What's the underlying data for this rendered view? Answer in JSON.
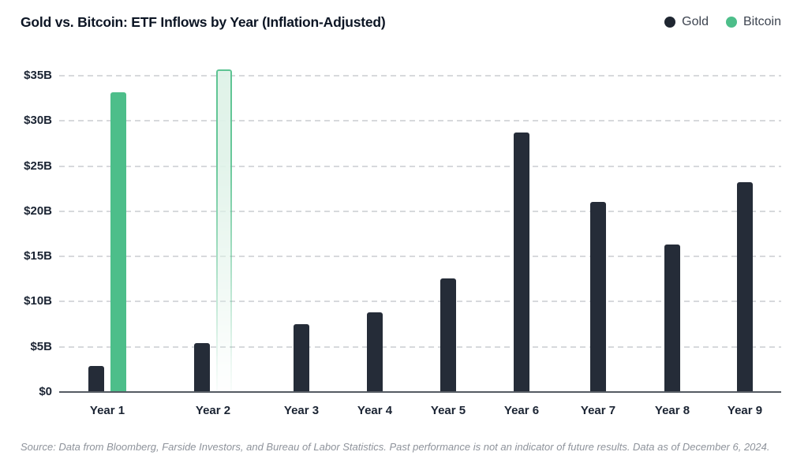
{
  "header": {
    "title": "Gold vs. Bitcoin: ETF Inflows by Year (Inflation-Adjusted)"
  },
  "legend": {
    "items": [
      {
        "label": "Gold",
        "color": "#1F2631"
      },
      {
        "label": "Bitcoin",
        "color": "#4DBE8A"
      }
    ]
  },
  "chart_data": {
    "type": "bar",
    "title": "Gold vs. Bitcoin: ETF Inflows by Year (Inflation-Adjusted)",
    "categories": [
      "Year 1",
      "Year 2",
      "Year 3",
      "Year 4",
      "Year 5",
      "Year 6",
      "Year 7",
      "Year 8",
      "Year 9"
    ],
    "series": [
      {
        "name": "Gold",
        "color": "#252C38",
        "values": [
          2.9,
          5.4,
          7.5,
          8.8,
          12.6,
          28.7,
          21.0,
          16.3,
          23.2
        ]
      },
      {
        "name": "Bitcoin",
        "color": "#4DBE8A",
        "values": [
          33.2,
          35.7,
          null,
          null,
          null,
          null,
          null,
          null,
          null
        ],
        "projected_indices": [
          1
        ]
      }
    ],
    "y_ticks": [
      {
        "value": 0,
        "label": "$0"
      },
      {
        "value": 5,
        "label": "$5B"
      },
      {
        "value": 10,
        "label": "$10B"
      },
      {
        "value": 15,
        "label": "$15B"
      },
      {
        "value": 20,
        "label": "$20B"
      },
      {
        "value": 25,
        "label": "$25B"
      },
      {
        "value": 30,
        "label": "$30B"
      },
      {
        "value": 35,
        "label": "$35B"
      }
    ],
    "ylim": [
      0,
      35
    ],
    "unit_suffix": "B",
    "grid": "horizontal-dashed",
    "legend_position": "top-right"
  },
  "footer": {
    "source": "Source: Data from Bloomberg, Farside Investors, and Bureau of Labor Statistics. Past performance is not an indicator of future results. Data as of December 6, 2024."
  },
  "colors": {
    "gold_bar": "#252C38",
    "bitcoin_bar": "#4DBE8A",
    "bitcoin_projected_border": "#58C28F",
    "bitcoin_projected_fill": "#DFF2E8",
    "gridline": "#D7D9DC",
    "baseline": "#555B63",
    "axis_text": "#1B2433",
    "title_text": "#0C1524",
    "legend_text": "#3D4450",
    "source_text": "#8E939B",
    "background": "#FFFFFF"
  }
}
